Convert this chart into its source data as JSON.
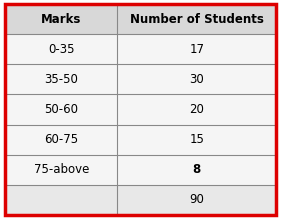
{
  "col1_header": "Marks",
  "col2_header": "Number of Students",
  "rows": [
    [
      "0-35",
      "17"
    ],
    [
      "35-50",
      "30"
    ],
    [
      "50-60",
      "20"
    ],
    [
      "60-75",
      "15"
    ],
    [
      "75-above",
      "8"
    ]
  ],
  "total_label": "",
  "total_value": "90",
  "header_bg": "#d8d8d8",
  "body_bg": "#f5f5f5",
  "total_bg": "#e8e8e8",
  "border_color": "#888888",
  "outer_border_color": "#dd0000",
  "outer_border_lw": 2.5,
  "inner_border_lw": 0.8,
  "header_fontsize": 8.5,
  "body_fontsize": 8.5,
  "fig_width": 2.81,
  "fig_height": 2.19,
  "dpi": 100,
  "col_split": 0.415
}
